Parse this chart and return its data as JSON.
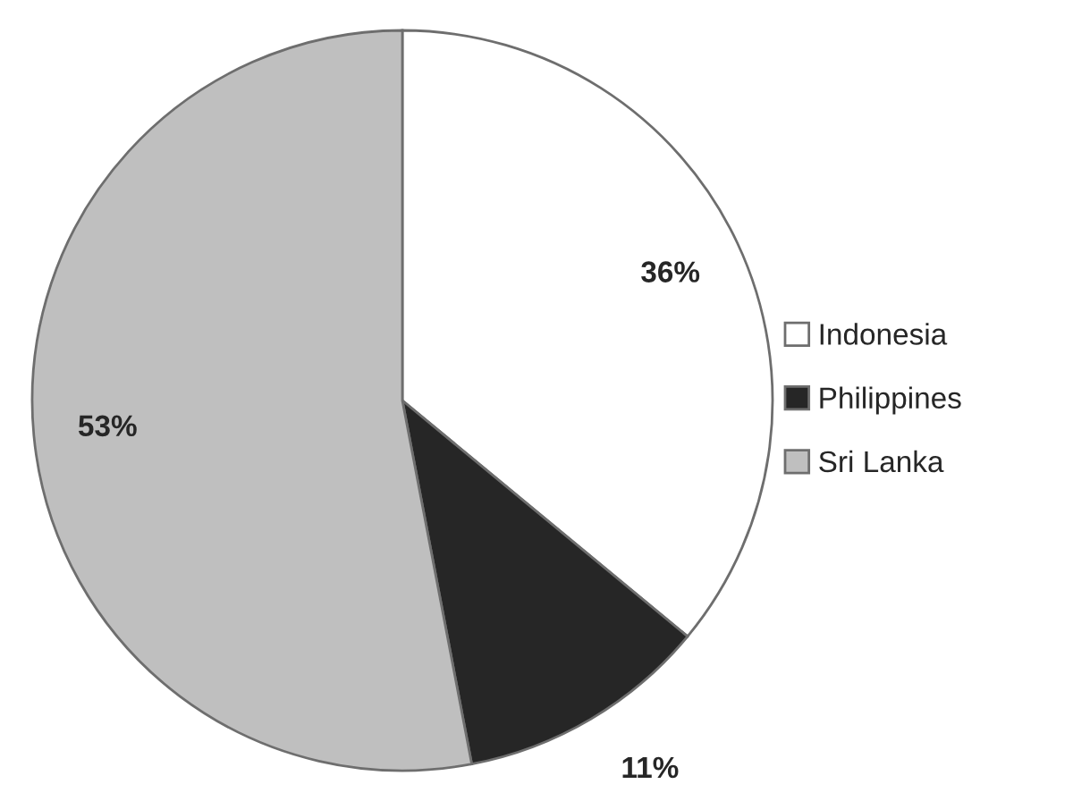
{
  "chart_data": {
    "type": "pie",
    "categories": [
      "Indonesia",
      "Philippines",
      "Sri Lanka"
    ],
    "values": [
      36,
      11,
      53
    ],
    "colors": [
      "#ffffff",
      "#262626",
      "#bfbfbf"
    ],
    "value_labels": [
      "36%",
      "11%",
      "53%"
    ],
    "legend": "right"
  }
}
